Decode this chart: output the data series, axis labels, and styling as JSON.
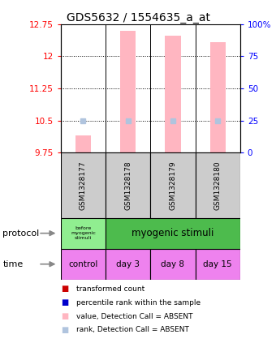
{
  "title": "GDS5632 / 1554635_a_at",
  "samples": [
    "GSM1328177",
    "GSM1328178",
    "GSM1328179",
    "GSM1328180"
  ],
  "bar_values": [
    10.15,
    12.6,
    12.48,
    12.32
  ],
  "rank_values": [
    10.5,
    10.5,
    10.5,
    10.5
  ],
  "ylim_left": [
    9.75,
    12.75
  ],
  "ylim_right": [
    0,
    100
  ],
  "yticks_left": [
    9.75,
    10.5,
    11.25,
    12.0,
    12.75
  ],
  "yticks_right": [
    0,
    25,
    50,
    75,
    100
  ],
  "ytick_labels_left": [
    "9.75",
    "10.5",
    "11.25",
    "12",
    "12.75"
  ],
  "ytick_labels_right": [
    "0",
    "25",
    "50",
    "75",
    "100%"
  ],
  "bar_color": "#ffb6c1",
  "rank_color": "#b0c4de",
  "time_labels": [
    "control",
    "day 3",
    "day 8",
    "day 15"
  ],
  "time_color": "#ee82ee",
  "protocol_color_first": "#90ee90",
  "protocol_color_rest": "#4dbb4d",
  "sample_bg_color": "#cccccc",
  "legend_items": [
    {
      "color": "#cc0000",
      "label": "transformed count"
    },
    {
      "color": "#0000cc",
      "label": "percentile rank within the sample"
    },
    {
      "color": "#ffb6c1",
      "label": "value, Detection Call = ABSENT"
    },
    {
      "color": "#b0c4de",
      "label": "rank, Detection Call = ABSENT"
    }
  ],
  "title_fontsize": 10,
  "tick_fontsize": 7.5,
  "label_fontsize": 7.5
}
